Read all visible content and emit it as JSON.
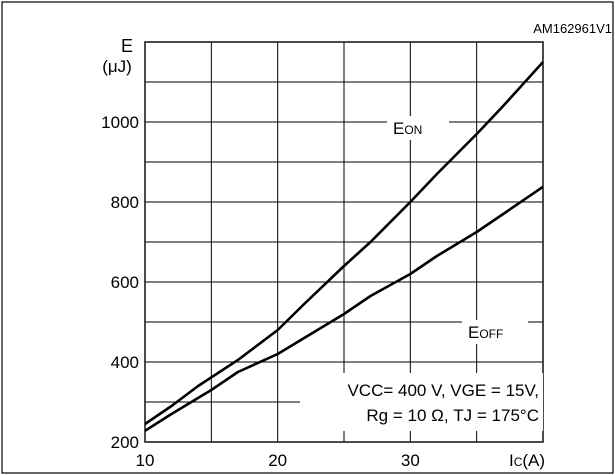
{
  "figure_id": "AM162961V1",
  "chart_data": {
    "type": "line",
    "x_axis": {
      "label_main": "I",
      "label_sub": "C",
      "label_unit": "(A)",
      "range": [
        10,
        40
      ],
      "tick_values": [
        10,
        20,
        30
      ],
      "tick_labels": [
        "10",
        "20",
        "30"
      ],
      "gridlines": [
        10,
        15,
        20,
        25,
        30,
        35,
        40
      ]
    },
    "y_axis": {
      "label_symbol": "E",
      "label_unit": "(μJ)",
      "range": [
        200,
        1200
      ],
      "tick_values": [
        200,
        400,
        600,
        800,
        1000
      ],
      "tick_labels": [
        "200",
        "400",
        "600",
        "800",
        "1000"
      ],
      "gridlines": [
        200,
        300,
        400,
        500,
        600,
        700,
        800,
        900,
        1000,
        1100,
        1200
      ]
    },
    "grid": true,
    "series": [
      {
        "name": "EON",
        "label_main": "E",
        "label_sub": "ON",
        "color": "#000000",
        "x": [
          10,
          12,
          14,
          17,
          20,
          22,
          25,
          27,
          30,
          32,
          35,
          37,
          40
        ],
        "y": [
          245,
          290,
          340,
          405,
          480,
          545,
          640,
          700,
          800,
          870,
          970,
          1040,
          1150
        ]
      },
      {
        "name": "EOFF",
        "label_main": "E",
        "label_sub": "OFF",
        "color": "#000000",
        "x": [
          10,
          12,
          15,
          17,
          20,
          22,
          25,
          27,
          30,
          32,
          35,
          37,
          40
        ],
        "y": [
          228,
          270,
          330,
          375,
          420,
          460,
          520,
          565,
          620,
          665,
          725,
          770,
          838
        ]
      }
    ],
    "conditions": {
      "line1": "VCC= 400 V, VGE = 15V,",
      "line2": "Rg = 10 Ω, TJ = 175°C"
    }
  }
}
